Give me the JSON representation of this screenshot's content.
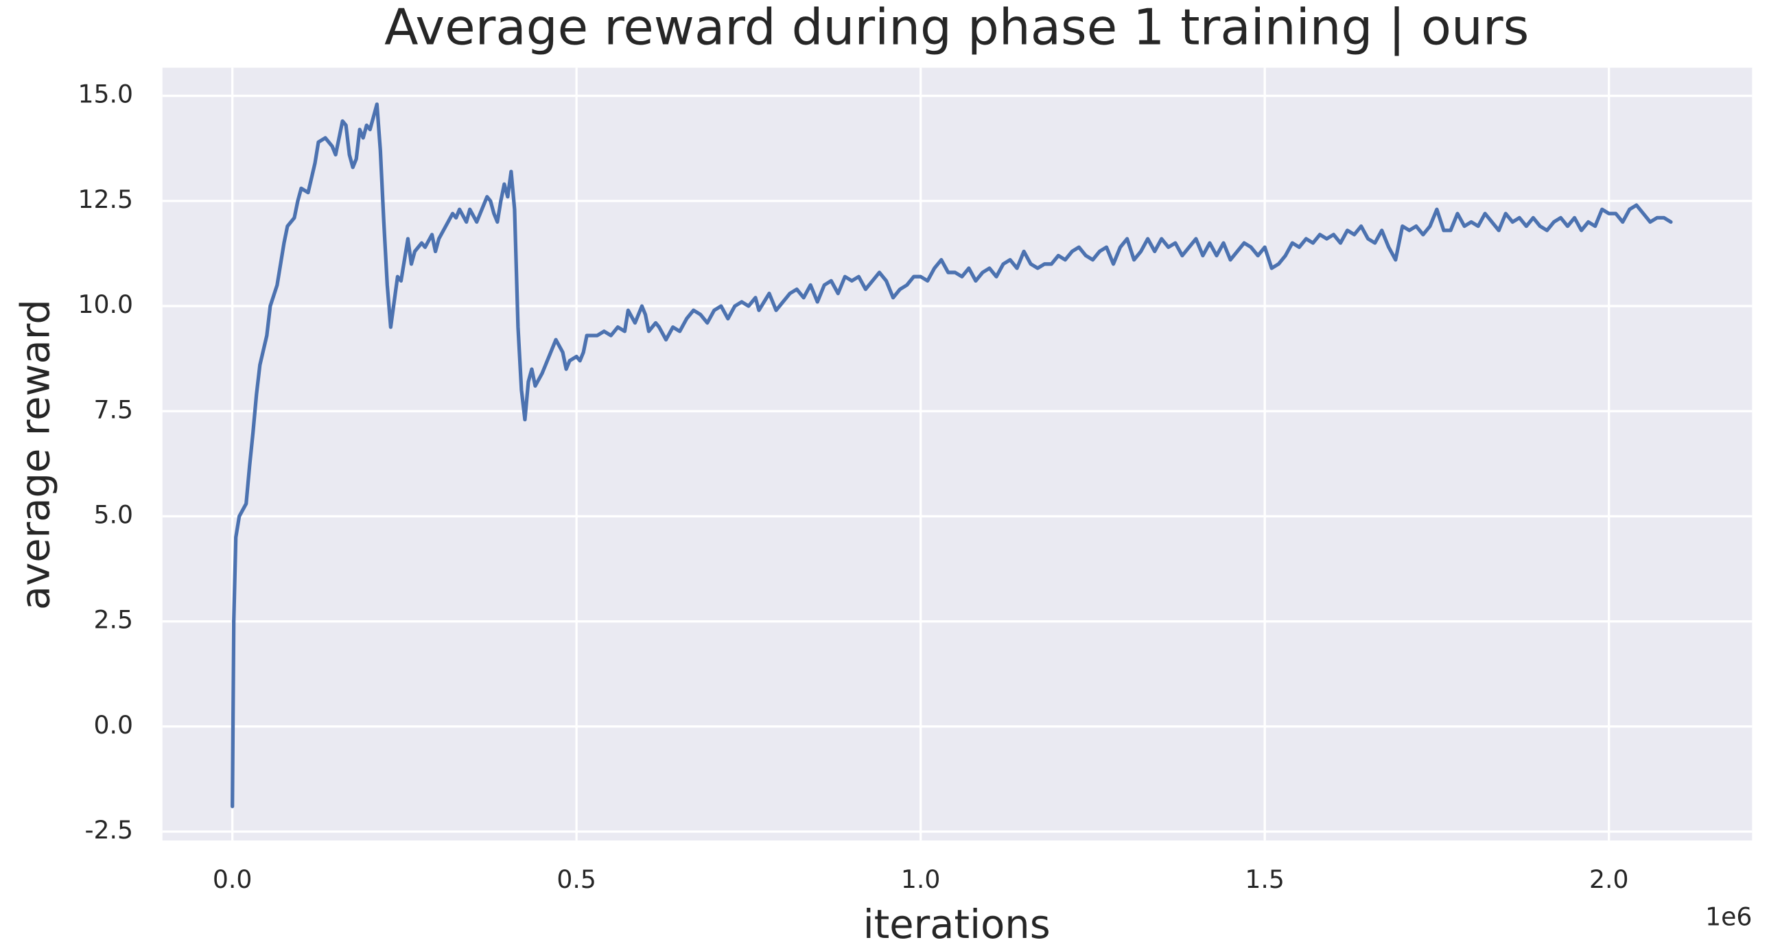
{
  "chart_data": {
    "type": "line",
    "title": "Average reward during phase 1 training | ours",
    "xlabel": "iterations",
    "ylabel": "average reward",
    "x_offset": "1e6",
    "color": "#4c72b0",
    "grid": true,
    "xlim": [
      -0.1016,
      2.208
    ],
    "ylim": [
      -2.71,
      15.67
    ],
    "xticks": [
      {
        "value": 0,
        "label": "0.0"
      },
      0.5,
      {
        "value": 1,
        "label": "1.0"
      },
      1.5,
      {
        "value": 2,
        "label": "2.0"
      }
    ],
    "yticks": [
      -2.5,
      {
        "value": 0,
        "label": "0.0"
      },
      2.5,
      {
        "value": 5,
        "label": "5.0"
      },
      7.5,
      {
        "value": 10,
        "label": "10.0"
      },
      12.5,
      {
        "value": 15,
        "label": "15.0"
      }
    ],
    "x": [
      0,
      0.002,
      0.005,
      0.01,
      0.02,
      0.025,
      0.03,
      0.035,
      0.04,
      0.05,
      0.055,
      0.065,
      0.07,
      0.075,
      0.08,
      0.09,
      0.095,
      0.1,
      0.11,
      0.12,
      0.125,
      0.135,
      0.145,
      0.15,
      0.16,
      0.165,
      0.17,
      0.175,
      0.18,
      0.185,
      0.19,
      0.195,
      0.2,
      0.21,
      0.215,
      0.22,
      0.225,
      0.23,
      0.24,
      0.245,
      0.25,
      0.255,
      0.26,
      0.265,
      0.275,
      0.28,
      0.29,
      0.295,
      0.3,
      0.31,
      0.32,
      0.325,
      0.33,
      0.34,
      0.345,
      0.355,
      0.36,
      0.37,
      0.375,
      0.38,
      0.385,
      0.39,
      0.395,
      0.4,
      0.405,
      0.41,
      0.415,
      0.42,
      0.425,
      0.43,
      0.435,
      0.44,
      0.45,
      0.455,
      0.46,
      0.47,
      0.48,
      0.485,
      0.49,
      0.5,
      0.505,
      0.51,
      0.515,
      0.53,
      0.54,
      0.55,
      0.56,
      0.57,
      0.575,
      0.585,
      0.595,
      0.6,
      0.605,
      0.615,
      0.62,
      0.63,
      0.64,
      0.65,
      0.66,
      0.67,
      0.68,
      0.69,
      0.7,
      0.71,
      0.72,
      0.73,
      0.74,
      0.75,
      0.76,
      0.765,
      0.78,
      0.79,
      0.8,
      0.81,
      0.82,
      0.83,
      0.84,
      0.85,
      0.86,
      0.87,
      0.88,
      0.89,
      0.9,
      0.91,
      0.92,
      0.93,
      0.94,
      0.95,
      0.96,
      0.97,
      0.98,
      0.99,
      1,
      1.01,
      1.02,
      1.03,
      1.04,
      1.05,
      1.06,
      1.07,
      1.08,
      1.09,
      1.1,
      1.11,
      1.12,
      1.13,
      1.14,
      1.15,
      1.16,
      1.17,
      1.18,
      1.19,
      1.2,
      1.21,
      1.22,
      1.23,
      1.24,
      1.25,
      1.26,
      1.27,
      1.28,
      1.29,
      1.3,
      1.31,
      1.32,
      1.33,
      1.34,
      1.35,
      1.36,
      1.37,
      1.38,
      1.39,
      1.4,
      1.41,
      1.42,
      1.43,
      1.44,
      1.45,
      1.46,
      1.47,
      1.48,
      1.49,
      1.5,
      1.51,
      1.52,
      1.53,
      1.54,
      1.55,
      1.56,
      1.57,
      1.58,
      1.59,
      1.6,
      1.61,
      1.62,
      1.63,
      1.64,
      1.65,
      1.66,
      1.67,
      1.68,
      1.69,
      1.7,
      1.71,
      1.72,
      1.73,
      1.74,
      1.75,
      1.76,
      1.77,
      1.78,
      1.79,
      1.8,
      1.81,
      1.82,
      1.83,
      1.84,
      1.85,
      1.86,
      1.87,
      1.88,
      1.89,
      1.9,
      1.91,
      1.92,
      1.93,
      1.94,
      1.95,
      1.96,
      1.97,
      1.98,
      1.99,
      2,
      2.01,
      2.02,
      2.03,
      2.04,
      2.05,
      2.06,
      2.07,
      2.08,
      2.09
    ],
    "values": [
      -1.9,
      2.5,
      4.5,
      5.0,
      5.3,
      6.2,
      7.0,
      7.9,
      8.6,
      9.3,
      10.0,
      10.5,
      11.0,
      11.5,
      11.9,
      12.1,
      12.5,
      12.8,
      12.7,
      13.4,
      13.9,
      14.0,
      13.8,
      13.6,
      14.4,
      14.3,
      13.6,
      13.3,
      13.5,
      14.2,
      14.0,
      14.3,
      14.2,
      14.8,
      13.7,
      12.0,
      10.5,
      9.5,
      10.7,
      10.6,
      11.1,
      11.6,
      11.0,
      11.3,
      11.5,
      11.4,
      11.7,
      11.3,
      11.6,
      11.9,
      12.2,
      12.1,
      12.3,
      12.0,
      12.3,
      12.0,
      12.2,
      12.6,
      12.5,
      12.2,
      12.0,
      12.5,
      12.9,
      12.6,
      13.2,
      12.3,
      9.5,
      8.0,
      7.3,
      8.2,
      8.5,
      8.1,
      8.4,
      8.6,
      8.8,
      9.2,
      8.9,
      8.5,
      8.7,
      8.8,
      8.7,
      8.9,
      9.3,
      9.3,
      9.4,
      9.3,
      9.5,
      9.4,
      9.9,
      9.6,
      10.0,
      9.8,
      9.4,
      9.6,
      9.5,
      9.2,
      9.5,
      9.4,
      9.7,
      9.9,
      9.8,
      9.6,
      9.9,
      10.0,
      9.7,
      10.0,
      10.1,
      10.0,
      10.2,
      9.9,
      10.3,
      9.9,
      10.1,
      10.3,
      10.4,
      10.2,
      10.5,
      10.1,
      10.5,
      10.6,
      10.3,
      10.7,
      10.6,
      10.7,
      10.4,
      10.6,
      10.8,
      10.6,
      10.2,
      10.4,
      10.5,
      10.7,
      10.7,
      10.6,
      10.9,
      11.1,
      10.8,
      10.8,
      10.7,
      10.9,
      10.6,
      10.8,
      10.9,
      10.7,
      11.0,
      11.1,
      10.9,
      11.3,
      11.0,
      10.9,
      11.0,
      11.0,
      11.2,
      11.1,
      11.3,
      11.4,
      11.2,
      11.1,
      11.3,
      11.4,
      11.0,
      11.4,
      11.6,
      11.1,
      11.3,
      11.6,
      11.3,
      11.6,
      11.4,
      11.5,
      11.2,
      11.4,
      11.6,
      11.2,
      11.5,
      11.2,
      11.5,
      11.1,
      11.3,
      11.5,
      11.4,
      11.2,
      11.4,
      10.9,
      11.0,
      11.2,
      11.5,
      11.4,
      11.6,
      11.5,
      11.7,
      11.6,
      11.7,
      11.5,
      11.8,
      11.7,
      11.9,
      11.6,
      11.5,
      11.8,
      11.4,
      11.1,
      11.9,
      11.8,
      11.9,
      11.7,
      11.9,
      12.3,
      11.8,
      11.8,
      12.2,
      11.9,
      12.0,
      11.9,
      12.2,
      12.0,
      11.8,
      12.2,
      12.0,
      12.1,
      11.9,
      12.1,
      11.9,
      11.8,
      12.0,
      12.1,
      11.9,
      12.1,
      11.8,
      12.0,
      11.9,
      12.3,
      12.2,
      12.2,
      12.0,
      12.3,
      12.4,
      12.2,
      12.0,
      12.1,
      12.1,
      12.0
    ]
  }
}
